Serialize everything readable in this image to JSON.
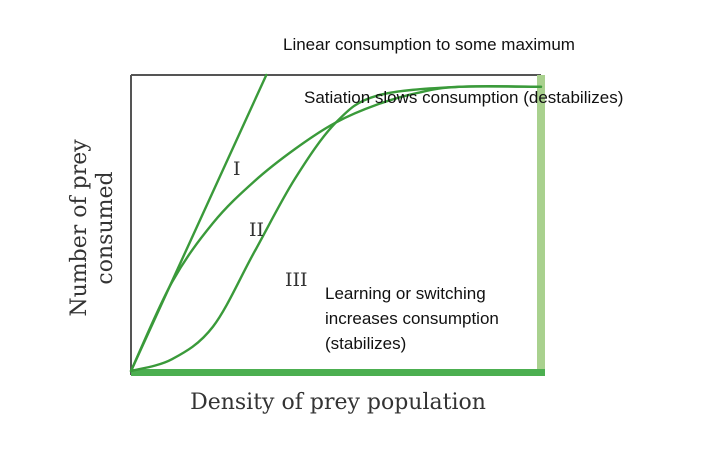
{
  "chart_data": {
    "type": "line",
    "xlabel": "Density of prey population",
    "ylabel_lines": [
      "Number of prey",
      "consumed"
    ],
    "xlim": [
      0,
      1
    ],
    "ylim": [
      0,
      1
    ],
    "grid": false,
    "series": [
      {
        "name": "I",
        "values": [
          [
            0.0,
            0.0
          ],
          [
            0.33,
            1.0
          ]
        ]
      },
      {
        "name": "II",
        "values": [
          [
            0.0,
            0.0
          ],
          [
            0.1,
            0.3
          ],
          [
            0.2,
            0.5
          ],
          [
            0.3,
            0.64
          ],
          [
            0.4,
            0.75
          ],
          [
            0.5,
            0.84
          ],
          [
            0.6,
            0.9
          ],
          [
            0.7,
            0.94
          ],
          [
            0.8,
            0.96
          ],
          [
            1.0,
            0.96
          ]
        ]
      },
      {
        "name": "III",
        "values": [
          [
            0.0,
            0.0
          ],
          [
            0.1,
            0.04
          ],
          [
            0.2,
            0.15
          ],
          [
            0.3,
            0.4
          ],
          [
            0.4,
            0.65
          ],
          [
            0.5,
            0.84
          ],
          [
            0.6,
            0.93
          ],
          [
            0.8,
            0.96
          ],
          [
            1.0,
            0.96
          ]
        ]
      }
    ],
    "annotations": [
      "Linear consumption to some maximum",
      "Satiation slows consumption (destabilizes)",
      "Learning or switching",
      "increases consumption",
      "(stabilizes)"
    ],
    "colors": {
      "curve": "#3a9a3a",
      "axis_bottom": "#4caf50",
      "axis_right": "#a9d18e",
      "frame": "#555555"
    }
  }
}
